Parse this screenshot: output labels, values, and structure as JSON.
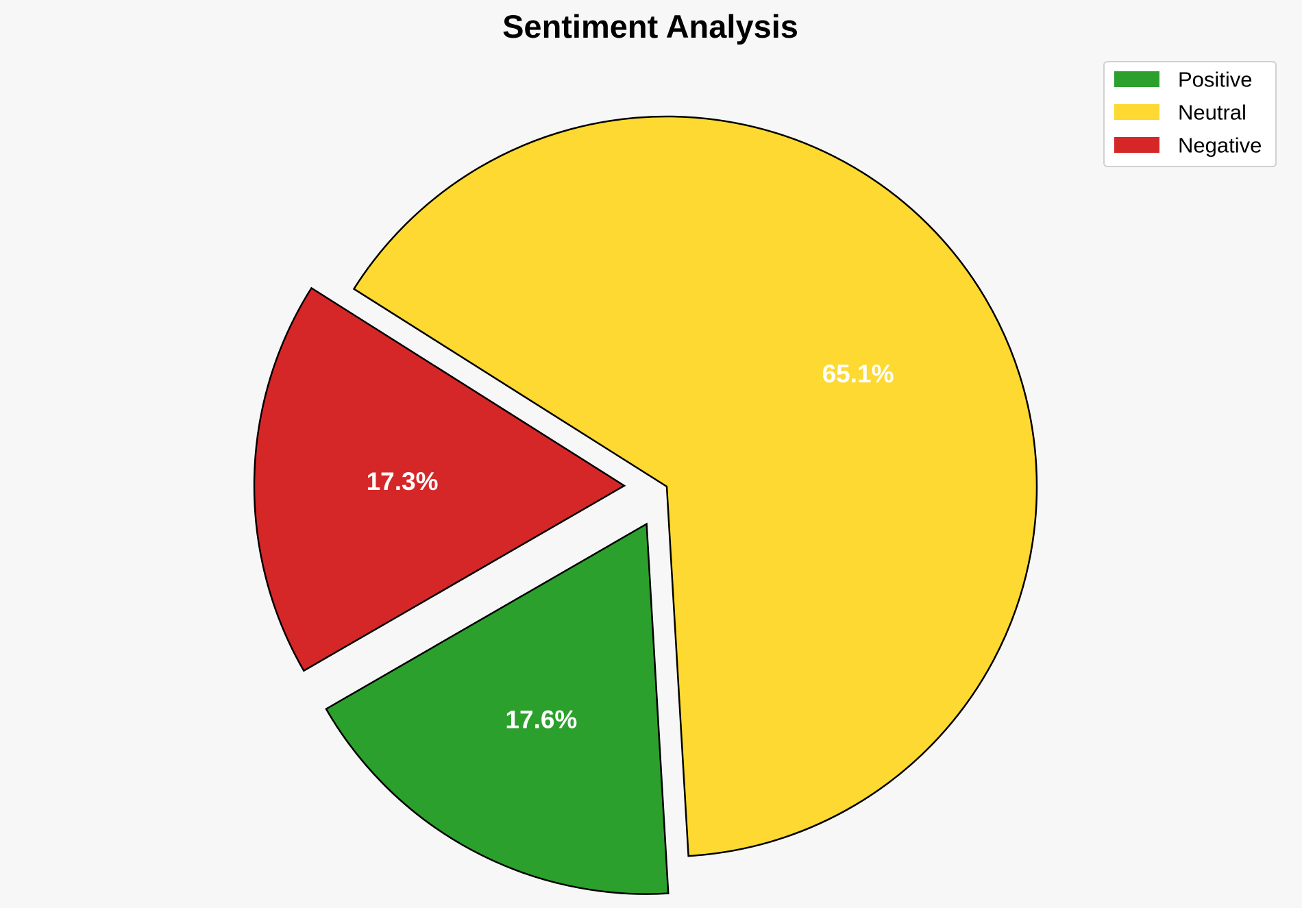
{
  "chart_data": {
    "type": "pie",
    "title": "Sentiment Analysis",
    "slices": [
      {
        "name": "Positive",
        "value": 17.6,
        "label": "17.6%",
        "color": "#2ca02c",
        "exploded": true
      },
      {
        "name": "Neutral",
        "value": 65.1,
        "label": "65.1%",
        "color": "#fdd931",
        "exploded": false
      },
      {
        "name": "Negative",
        "value": 17.3,
        "label": "17.3%",
        "color": "#d62728",
        "exploded": true
      }
    ],
    "legend": {
      "position": "top-right",
      "entries": [
        "Positive",
        "Neutral",
        "Negative"
      ]
    },
    "edge_color": "#000000",
    "background": "#f7f7f7"
  }
}
